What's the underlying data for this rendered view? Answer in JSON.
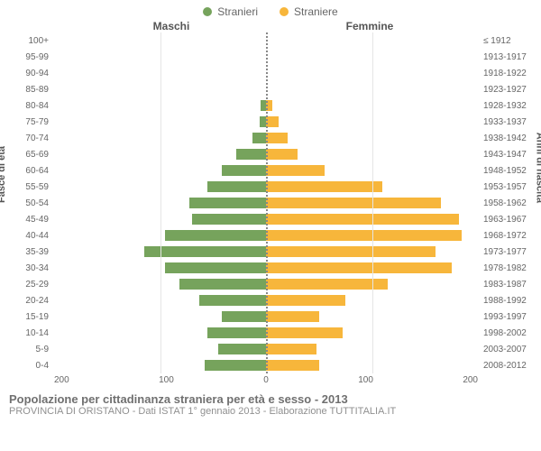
{
  "colors": {
    "male": "#76a35c",
    "female": "#f7b63b",
    "grid": "#e5e5e5",
    "center_dash": "#888888",
    "background": "#ffffff"
  },
  "legend": {
    "male_label": "Stranieri",
    "female_label": "Straniere"
  },
  "headers": {
    "left": "Maschi",
    "right": "Femmine"
  },
  "axis_titles": {
    "left": "Fasce di età",
    "right": "Anni di nascita"
  },
  "chart": {
    "type": "bar_pyramid",
    "x_max": 200,
    "x_ticks": [
      200,
      100,
      0,
      100,
      200
    ],
    "age_groups": [
      {
        "age": "100+",
        "birth": "≤ 1912",
        "m": 0,
        "f": 0
      },
      {
        "age": "95-99",
        "birth": "1913-1917",
        "m": 0,
        "f": 0
      },
      {
        "age": "90-94",
        "birth": "1918-1922",
        "m": 0,
        "f": 0
      },
      {
        "age": "85-89",
        "birth": "1923-1927",
        "m": 0,
        "f": 0
      },
      {
        "age": "80-84",
        "birth": "1928-1932",
        "m": 5,
        "f": 6
      },
      {
        "age": "75-79",
        "birth": "1933-1937",
        "m": 6,
        "f": 12
      },
      {
        "age": "70-74",
        "birth": "1938-1942",
        "m": 13,
        "f": 20
      },
      {
        "age": "65-69",
        "birth": "1943-1947",
        "m": 28,
        "f": 30
      },
      {
        "age": "60-64",
        "birth": "1948-1952",
        "m": 42,
        "f": 55
      },
      {
        "age": "55-59",
        "birth": "1953-1957",
        "m": 55,
        "f": 110
      },
      {
        "age": "50-54",
        "birth": "1958-1962",
        "m": 72,
        "f": 165
      },
      {
        "age": "45-49",
        "birth": "1963-1967",
        "m": 70,
        "f": 182
      },
      {
        "age": "40-44",
        "birth": "1968-1972",
        "m": 95,
        "f": 185
      },
      {
        "age": "35-39",
        "birth": "1973-1977",
        "m": 115,
        "f": 160
      },
      {
        "age": "30-34",
        "birth": "1978-1982",
        "m": 95,
        "f": 175
      },
      {
        "age": "25-29",
        "birth": "1983-1987",
        "m": 82,
        "f": 115
      },
      {
        "age": "20-24",
        "birth": "1988-1992",
        "m": 63,
        "f": 75
      },
      {
        "age": "15-19",
        "birth": "1993-1997",
        "m": 42,
        "f": 50
      },
      {
        "age": "10-14",
        "birth": "1998-2002",
        "m": 55,
        "f": 72
      },
      {
        "age": "5-9",
        "birth": "2003-2007",
        "m": 45,
        "f": 48
      },
      {
        "age": "0-4",
        "birth": "2008-2012",
        "m": 58,
        "f": 50
      }
    ]
  },
  "footer": {
    "title": "Popolazione per cittadinanza straniera per età e sesso - 2013",
    "subtitle": "PROVINCIA DI ORISTANO - Dati ISTAT 1° gennaio 2013 - Elaborazione TUTTITALIA.IT"
  }
}
